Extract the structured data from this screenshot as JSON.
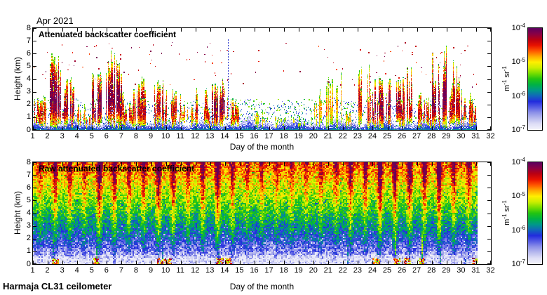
{
  "figure": {
    "month_label": "Apr 2021",
    "footer": "Harmaja CL31 ceilometer",
    "background": "#ffffff"
  },
  "panels": [
    {
      "title": "Attenuated backscatter coefficient",
      "xlabel": "Day of the month",
      "ylabel": "Height (km)"
    },
    {
      "title": "Raw attenuated backscatter coefficient",
      "xlabel": "Day of the month",
      "ylabel": "Height (km)"
    }
  ],
  "colorbar": {
    "unit": "m^-1 sr^-1",
    "scale": "log",
    "tick_labels": [
      "10^-4",
      "10^-5",
      "10^-6",
      "10^-7"
    ],
    "colors_top_to_bottom": [
      "#5e005e",
      "#8a0044",
      "#bb0011",
      "#e81100",
      "#ff5500",
      "#ffaa00",
      "#ffee00",
      "#ccee00",
      "#77dd00",
      "#22c411",
      "#00b244",
      "#009988",
      "#1166bb",
      "#222cdd",
      "#555ce4",
      "#8e92e8",
      "#b8baee",
      "#dedef6",
      "#f2f2fb"
    ]
  },
  "chart_data": [
    {
      "type": "heatmap",
      "panel": "attenuated_backscatter",
      "title": "Attenuated backscatter coefficient",
      "xlabel": "Day of the month",
      "ylabel": "Height (km)",
      "xlim": [
        1,
        32
      ],
      "ylim": [
        0,
        8
      ],
      "xticks": [
        1,
        2,
        3,
        4,
        5,
        6,
        7,
        8,
        9,
        10,
        11,
        12,
        13,
        14,
        15,
        16,
        17,
        18,
        19,
        20,
        21,
        22,
        23,
        24,
        25,
        26,
        27,
        28,
        29,
        30,
        31,
        32
      ],
      "yticks": [
        0,
        1,
        2,
        3,
        4,
        5,
        6,
        7,
        8
      ],
      "value_range": [
        "1e-7",
        "1e-4"
      ],
      "value_unit": "m^-1 sr^-1",
      "data_end_day": 31.05,
      "boundary_layer_top_km_mean": 0.65,
      "days": [
        1,
        2,
        3,
        4,
        5,
        6,
        7,
        8,
        9,
        10,
        11,
        12,
        13,
        14,
        15,
        16,
        17,
        18,
        19,
        20,
        21,
        22,
        23,
        24,
        25,
        26,
        27,
        28,
        29,
        30,
        31
      ],
      "cloud_top_km": [
        2.8,
        6.0,
        4.2,
        2.2,
        4.6,
        6.2,
        3.2,
        4.2,
        4.0,
        3.2,
        2.3,
        3.3,
        4.0,
        2.5,
        0,
        1.5,
        0,
        0,
        0,
        5.0,
        4.5,
        1.8,
        5.2,
        4.2,
        4.0,
        5.0,
        3.0,
        6.8,
        5.5,
        3.2,
        3.0
      ],
      "cloud_activity": [
        0.5,
        0.8,
        0.7,
        0.35,
        0.8,
        0.8,
        0.5,
        0.6,
        0.6,
        0.55,
        0.3,
        0.5,
        0.75,
        0.5,
        0,
        0.1,
        0.03,
        0.03,
        0.03,
        0.2,
        0.15,
        0.2,
        0.5,
        0.7,
        0.7,
        0.6,
        0.5,
        0.8,
        0.6,
        0.55,
        0.5
      ],
      "high_altitude_specks": [
        5,
        8,
        6,
        3,
        6,
        7,
        4,
        5,
        5,
        4,
        3,
        5,
        6,
        5,
        1,
        3,
        1,
        1,
        1,
        5,
        4,
        2,
        5,
        6,
        6,
        6,
        4,
        8,
        6,
        4,
        4
      ],
      "low_level_speck_density": [
        0.25,
        0.25,
        0.25,
        0.3,
        0.25,
        0.25,
        0.3,
        0.3,
        0.3,
        0.3,
        0.3,
        0.3,
        0.3,
        0.5,
        0.6,
        0.6,
        0.55,
        0.55,
        0.5,
        0.5,
        0.5,
        0.45,
        0.35,
        0.3,
        0.3,
        0.3,
        0.3,
        0.3,
        0.3,
        0.3,
        0.3
      ],
      "dashed_blue_column": {
        "day": 14.2,
        "top_km": 7.2,
        "color": "#2633cc"
      }
    },
    {
      "type": "heatmap",
      "panel": "raw_attenuated_backscatter",
      "title": "Raw attenuated backscatter coefficient",
      "xlabel": "Day of the month",
      "ylabel": "Height (km)",
      "xlim": [
        1,
        32
      ],
      "ylim": [
        0,
        8
      ],
      "xticks": [
        1,
        2,
        3,
        4,
        5,
        6,
        7,
        8,
        9,
        10,
        11,
        12,
        13,
        14,
        15,
        16,
        17,
        18,
        19,
        20,
        21,
        22,
        23,
        24,
        25,
        26,
        27,
        28,
        29,
        30,
        31,
        32
      ],
      "yticks": [
        0,
        1,
        2,
        3,
        4,
        5,
        6,
        7,
        8
      ],
      "value_range": [
        "1e-7",
        "1e-4"
      ],
      "value_unit": "m^-1 sr^-1",
      "data_end_day": 31.05,
      "noise_profile": "background noise rises with altitude: pale lavender below 1 km, blue 1-3 km, green 3-5 km, yellow-orange-red 6-8 km",
      "solar_noise_stripe_strength": [
        0.3,
        0.55,
        0.5,
        0.35,
        0.8,
        0.6,
        0.45,
        0.5,
        0.75,
        0.6,
        0.4,
        0.55,
        0.75,
        0.5,
        0.3,
        0.35,
        0.3,
        0.35,
        0.3,
        0.35,
        0.4,
        0.6,
        0.5,
        0.8,
        0.65,
        0.7,
        0.6,
        0.8,
        0.5,
        0.45,
        0.6
      ],
      "surface_echo_spots_days": [
        2.5,
        5.2,
        9.6,
        10.1,
        13.6,
        14.2,
        24.2,
        25.6,
        26.3,
        27.3,
        30.9
      ],
      "precip_columns_days": [
        2.3,
        5.3,
        9.7,
        13.5,
        22.3,
        24.3,
        25.5,
        27.3,
        28.5,
        30.2
      ]
    }
  ]
}
